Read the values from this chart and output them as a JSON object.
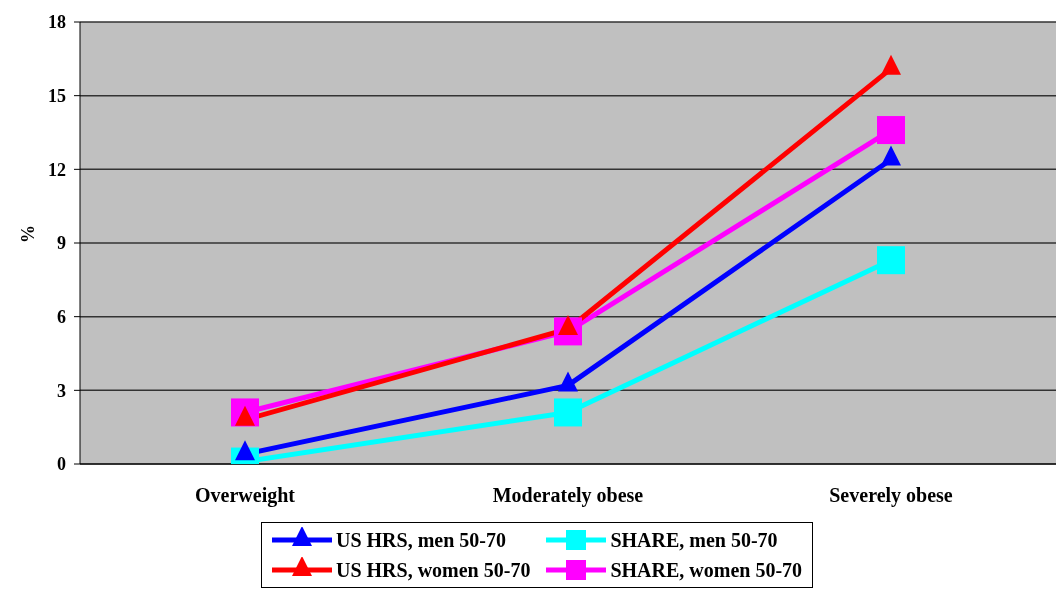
{
  "chart_data": {
    "type": "line",
    "ylabel": "%",
    "categories": [
      "Overweight",
      "Moderately obese",
      "Severely obese"
    ],
    "ylim": [
      0,
      18
    ],
    "yticks": [
      0,
      3,
      6,
      9,
      12,
      15,
      18
    ],
    "grid": "y",
    "legend": "bottom",
    "series": [
      {
        "name": "US HRS, men 50-70",
        "color": "#0000ff",
        "marker": "triangle",
        "values": [
          0.4,
          3.2,
          12.4
        ]
      },
      {
        "name": "SHARE, men 50-70",
        "color": "#00ffff",
        "marker": "square",
        "values": [
          0.1,
          2.1,
          8.3
        ]
      },
      {
        "name": "US HRS, women 50-70",
        "color": "#ff0000",
        "marker": "triangle",
        "values": [
          1.8,
          5.5,
          16.1
        ]
      },
      {
        "name": "SHARE, women 50-70",
        "color": "#ff00ff",
        "marker": "square",
        "values": [
          2.1,
          5.4,
          13.6
        ]
      }
    ]
  }
}
